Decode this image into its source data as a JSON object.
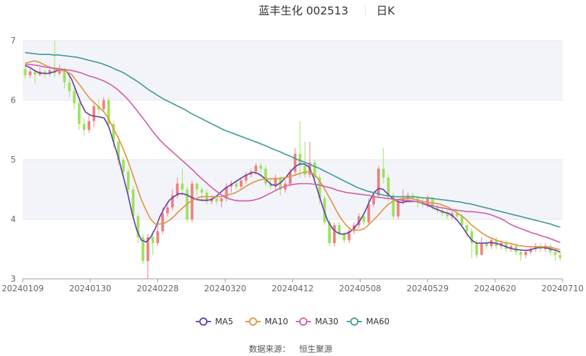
{
  "header": {
    "title": "蓝丰生化 002513",
    "period": "日K"
  },
  "source": {
    "label": "数据来源：",
    "provider": "恒生聚源"
  },
  "colors": {
    "up": "#f07f7f",
    "down": "#9de35a",
    "ma5": "#6b46a8",
    "ma10": "#e0984a",
    "ma30": "#d067a9",
    "ma60": "#4a9e9a",
    "band": "#f3f4fa",
    "grid": "#e6e6e6"
  },
  "chart_data": {
    "type": "candlestick",
    "x_ticks": [
      "20240109",
      "20240130",
      "20240228",
      "20240320",
      "20240412",
      "20240508",
      "20240529",
      "20240620",
      "20240710"
    ],
    "y_ticks": [
      "3",
      "4",
      "5",
      "6",
      "7"
    ],
    "ylim": [
      3,
      7
    ],
    "legend": [
      "MA5",
      "MA10",
      "MA30",
      "MA60"
    ],
    "legend_position": "bottom",
    "candles": [
      [
        6.52,
        6.42,
        6.57,
        6.36
      ],
      [
        6.42,
        6.48,
        6.53,
        6.37
      ],
      [
        6.48,
        6.43,
        6.52,
        6.28
      ],
      [
        6.43,
        6.48,
        6.55,
        6.4
      ],
      [
        6.48,
        6.44,
        6.52,
        6.37
      ],
      [
        6.44,
        6.5,
        6.58,
        6.4
      ],
      [
        6.5,
        6.45,
        7.0,
        6.38
      ],
      [
        6.45,
        6.52,
        6.6,
        6.42
      ],
      [
        6.52,
        6.3,
        6.55,
        6.2
      ],
      [
        6.3,
        6.15,
        6.4,
        6.05
      ],
      [
        6.15,
        5.95,
        6.2,
        5.85
      ],
      [
        5.95,
        5.6,
        6.0,
        5.5
      ],
      [
        5.6,
        5.5,
        5.7,
        5.4
      ],
      [
        5.5,
        5.65,
        5.75,
        5.45
      ],
      [
        5.65,
        5.9,
        5.98,
        5.55
      ],
      [
        5.9,
        5.85,
        6.0,
        5.75
      ],
      [
        5.85,
        6.0,
        6.05,
        5.8
      ],
      [
        6.0,
        5.6,
        6.05,
        5.55
      ],
      [
        5.6,
        5.3,
        5.65,
        5.2
      ],
      [
        5.3,
        5.0,
        5.4,
        4.9
      ],
      [
        5.0,
        4.8,
        5.05,
        4.7
      ],
      [
        4.8,
        4.5,
        4.85,
        4.4
      ],
      [
        4.5,
        4.05,
        4.55,
        4.0
      ],
      [
        4.05,
        3.7,
        4.1,
        3.6
      ],
      [
        3.7,
        3.3,
        3.75,
        3.25
      ],
      [
        3.3,
        3.7,
        3.75,
        3.0
      ],
      [
        3.7,
        3.6,
        3.8,
        3.4
      ],
      [
        3.6,
        3.8,
        3.95,
        3.55
      ],
      [
        3.8,
        4.1,
        4.2,
        3.75
      ],
      [
        4.1,
        4.2,
        4.3,
        4.05
      ],
      [
        4.2,
        4.4,
        4.5,
        4.15
      ],
      [
        4.4,
        4.6,
        4.7,
        4.35
      ],
      [
        4.6,
        4.5,
        4.85,
        4.4
      ],
      [
        4.5,
        4.0,
        4.55,
        3.95
      ],
      [
        4.0,
        4.6,
        4.65,
        3.95
      ],
      [
        4.6,
        4.5,
        4.62,
        4.4
      ],
      [
        4.5,
        4.45,
        4.55,
        4.3
      ],
      [
        4.45,
        4.3,
        4.5,
        4.25
      ],
      [
        4.3,
        4.35,
        4.4,
        4.25
      ],
      [
        4.35,
        4.3,
        4.4,
        4.25
      ],
      [
        4.3,
        4.35,
        4.4,
        4.2
      ],
      [
        4.35,
        4.55,
        4.6,
        4.3
      ],
      [
        4.55,
        4.6,
        4.65,
        4.45
      ],
      [
        4.6,
        4.55,
        4.65,
        4.5
      ],
      [
        4.55,
        4.65,
        4.7,
        4.5
      ],
      [
        4.65,
        4.75,
        4.8,
        4.6
      ],
      [
        4.75,
        4.8,
        4.85,
        4.7
      ],
      [
        4.8,
        4.9,
        4.95,
        4.75
      ],
      [
        4.9,
        4.85,
        4.95,
        4.75
      ],
      [
        4.85,
        4.6,
        4.9,
        4.55
      ],
      [
        4.6,
        4.55,
        4.7,
        4.5
      ],
      [
        4.55,
        4.7,
        4.75,
        4.5
      ],
      [
        4.7,
        4.5,
        4.72,
        4.4
      ],
      [
        4.5,
        4.6,
        4.65,
        4.45
      ],
      [
        4.6,
        4.8,
        4.85,
        4.55
      ],
      [
        4.8,
        5.1,
        5.2,
        4.75
      ],
      [
        5.1,
        4.9,
        5.65,
        4.7
      ],
      [
        4.9,
        4.75,
        5.3,
        4.7
      ],
      [
        4.75,
        4.95,
        5.3,
        4.7
      ],
      [
        4.95,
        4.7,
        5.0,
        4.6
      ],
      [
        4.7,
        4.35,
        4.75,
        4.25
      ],
      [
        4.35,
        3.95,
        4.4,
        3.9
      ],
      [
        3.95,
        3.6,
        4.0,
        3.55
      ],
      [
        3.6,
        3.9,
        3.95,
        3.55
      ],
      [
        3.9,
        3.75,
        3.95,
        3.7
      ],
      [
        3.75,
        3.65,
        3.8,
        3.6
      ],
      [
        3.65,
        3.8,
        3.85,
        3.6
      ],
      [
        3.8,
        3.9,
        3.95,
        3.75
      ],
      [
        3.9,
        4.05,
        4.1,
        3.85
      ],
      [
        4.05,
        3.95,
        4.1,
        3.9
      ],
      [
        3.95,
        4.25,
        4.35,
        3.9
      ],
      [
        4.25,
        4.4,
        4.45,
        4.2
      ],
      [
        4.4,
        4.85,
        4.9,
        4.35
      ],
      [
        4.85,
        4.7,
        5.2,
        4.6
      ],
      [
        4.7,
        4.4,
        4.75,
        4.3
      ],
      [
        4.4,
        4.05,
        4.45,
        4.0
      ],
      [
        4.05,
        4.3,
        4.35,
        4.0
      ],
      [
        4.3,
        4.35,
        4.5,
        4.25
      ],
      [
        4.35,
        4.4,
        4.45,
        4.3
      ],
      [
        4.4,
        4.35,
        4.45,
        4.3
      ],
      [
        4.35,
        4.3,
        4.4,
        4.2
      ],
      [
        4.3,
        4.25,
        4.35,
        4.2
      ],
      [
        4.25,
        4.35,
        4.4,
        4.2
      ],
      [
        4.35,
        4.2,
        4.38,
        4.15
      ],
      [
        4.2,
        4.15,
        4.25,
        4.1
      ],
      [
        4.15,
        4.1,
        4.2,
        4.05
      ],
      [
        4.1,
        4.05,
        4.15,
        4.0
      ],
      [
        4.05,
        4.1,
        4.15,
        4.0
      ],
      [
        4.1,
        4.05,
        4.15,
        4.0
      ],
      [
        4.05,
        3.9,
        4.1,
        3.85
      ],
      [
        3.9,
        3.8,
        3.95,
        3.7
      ],
      [
        3.8,
        3.6,
        3.85,
        3.35
      ],
      [
        3.6,
        3.4,
        3.65,
        3.35
      ],
      [
        3.4,
        3.6,
        3.7,
        3.4
      ],
      [
        3.6,
        3.55,
        3.65,
        3.5
      ],
      [
        3.55,
        3.65,
        3.7,
        3.5
      ],
      [
        3.65,
        3.55,
        3.7,
        3.5
      ],
      [
        3.55,
        3.6,
        3.65,
        3.5
      ],
      [
        3.6,
        3.5,
        3.65,
        3.45
      ],
      [
        3.5,
        3.55,
        3.6,
        3.45
      ],
      [
        3.55,
        3.45,
        3.6,
        3.4
      ],
      [
        3.45,
        3.4,
        3.5,
        3.3
      ],
      [
        3.4,
        3.45,
        3.5,
        3.35
      ],
      [
        3.45,
        3.5,
        3.55,
        3.4
      ],
      [
        3.5,
        3.55,
        3.6,
        3.45
      ],
      [
        3.55,
        3.5,
        3.6,
        3.45
      ],
      [
        3.5,
        3.55,
        3.6,
        3.45
      ],
      [
        3.55,
        3.45,
        3.58,
        3.4
      ],
      [
        3.45,
        3.4,
        3.5,
        3.3
      ],
      [
        3.4,
        3.35,
        3.45,
        3.3
      ]
    ],
    "series": [
      {
        "name": "MA5",
        "values": [
          6.58,
          6.55,
          6.5,
          6.46,
          6.45,
          6.45,
          6.47,
          6.5,
          6.52,
          6.48,
          6.35,
          6.15,
          5.95,
          5.8,
          5.75,
          5.73,
          5.72,
          5.7,
          5.55,
          5.3,
          5.05,
          4.75,
          4.45,
          4.1,
          3.82,
          3.65,
          3.62,
          3.7,
          3.85,
          4.05,
          4.2,
          4.32,
          4.38,
          4.43,
          4.43,
          4.4,
          4.36,
          4.33,
          4.32,
          4.32,
          4.33,
          4.38,
          4.45,
          4.52,
          4.57,
          4.62,
          4.67,
          4.72,
          4.76,
          4.79,
          4.77,
          4.72,
          4.65,
          4.58,
          4.57,
          4.62,
          4.7,
          4.8,
          4.88,
          4.93,
          4.93,
          4.88,
          4.7,
          4.45,
          4.2,
          3.98,
          3.85,
          3.78,
          3.75,
          3.76,
          3.8,
          3.88,
          3.98,
          4.12,
          4.3,
          4.45,
          4.52,
          4.5,
          4.42,
          4.35,
          4.3,
          4.28,
          4.3,
          4.3,
          4.3,
          4.28,
          4.25,
          4.22,
          4.18,
          4.15,
          4.12,
          4.1,
          4.05,
          3.97,
          3.87,
          3.75,
          3.65,
          3.6,
          3.6,
          3.6,
          3.61,
          3.6,
          3.58,
          3.55,
          3.52,
          3.5,
          3.49,
          3.48,
          3.48,
          3.5,
          3.52,
          3.53,
          3.52,
          3.5,
          3.48,
          3.45
        ]
      },
      {
        "name": "MA10",
        "values": [
          6.62,
          6.64,
          6.66,
          6.64,
          6.6,
          6.56,
          6.53,
          6.51,
          6.5,
          6.48,
          6.43,
          6.33,
          6.23,
          6.12,
          6.02,
          5.95,
          5.87,
          5.8,
          5.68,
          5.52,
          5.37,
          5.2,
          5.0,
          4.78,
          4.55,
          4.33,
          4.15,
          4.0,
          3.92,
          3.92,
          3.94,
          3.98,
          4.05,
          4.13,
          4.2,
          4.27,
          4.32,
          4.36,
          4.38,
          4.38,
          4.38,
          4.38,
          4.38,
          4.4,
          4.42,
          4.44,
          4.48,
          4.53,
          4.58,
          4.62,
          4.65,
          4.67,
          4.68,
          4.68,
          4.68,
          4.69,
          4.7,
          4.72,
          4.74,
          4.77,
          4.79,
          4.8,
          4.76,
          4.68,
          4.56,
          4.42,
          4.28,
          4.13,
          4.0,
          3.9,
          3.83,
          3.82,
          3.82,
          3.85,
          3.92,
          4.0,
          4.08,
          4.17,
          4.25,
          4.3,
          4.33,
          4.35,
          4.35,
          4.35,
          4.33,
          4.31,
          4.29,
          4.28,
          4.27,
          4.26,
          4.23,
          4.2,
          4.15,
          4.1,
          4.05,
          3.98,
          3.9,
          3.84,
          3.78,
          3.73,
          3.69,
          3.66,
          3.63,
          3.61,
          3.6,
          3.58,
          3.56,
          3.55,
          3.54,
          3.54,
          3.54,
          3.54,
          3.54,
          3.53,
          3.51,
          3.49
        ]
      },
      {
        "name": "MA30",
        "values": [
          6.6,
          6.6,
          6.59,
          6.58,
          6.56,
          6.55,
          6.54,
          6.53,
          6.52,
          6.51,
          6.5,
          6.48,
          6.46,
          6.43,
          6.4,
          6.38,
          6.35,
          6.32,
          6.28,
          6.23,
          6.17,
          6.1,
          6.02,
          5.93,
          5.83,
          5.73,
          5.63,
          5.52,
          5.42,
          5.33,
          5.25,
          5.18,
          5.11,
          5.04,
          4.97,
          4.9,
          4.83,
          4.75,
          4.68,
          4.61,
          4.54,
          4.48,
          4.42,
          4.37,
          4.34,
          4.32,
          4.31,
          4.31,
          4.31,
          4.32,
          4.34,
          4.37,
          4.41,
          4.45,
          4.49,
          4.53,
          4.56,
          4.58,
          4.59,
          4.6,
          4.6,
          4.6,
          4.59,
          4.58,
          4.56,
          4.54,
          4.52,
          4.49,
          4.47,
          4.45,
          4.44,
          4.43,
          4.42,
          4.41,
          4.4,
          4.38,
          4.37,
          4.36,
          4.35,
          4.34,
          4.33,
          4.32,
          4.32,
          4.31,
          4.3,
          4.28,
          4.26,
          4.24,
          4.22,
          4.2,
          4.19,
          4.17,
          4.16,
          4.15,
          4.14,
          4.13,
          4.13,
          4.12,
          4.11,
          4.1,
          4.08,
          4.05,
          4.02,
          3.98,
          3.93,
          3.89,
          3.86,
          3.83,
          3.8,
          3.77,
          3.75,
          3.72,
          3.7,
          3.67,
          3.64,
          3.61
        ]
      },
      {
        "name": "MA60",
        "values": [
          6.8,
          6.79,
          6.78,
          6.77,
          6.77,
          6.77,
          6.76,
          6.76,
          6.75,
          6.74,
          6.73,
          6.72,
          6.7,
          6.68,
          6.66,
          6.64,
          6.62,
          6.59,
          6.56,
          6.52,
          6.49,
          6.45,
          6.4,
          6.35,
          6.3,
          6.24,
          6.18,
          6.13,
          6.08,
          6.03,
          5.99,
          5.95,
          5.91,
          5.87,
          5.83,
          5.78,
          5.74,
          5.7,
          5.66,
          5.62,
          5.58,
          5.54,
          5.5,
          5.47,
          5.44,
          5.41,
          5.38,
          5.35,
          5.32,
          5.29,
          5.26,
          5.23,
          5.19,
          5.16,
          5.13,
          5.09,
          5.06,
          5.02,
          4.99,
          4.96,
          4.93,
          4.89,
          4.86,
          4.82,
          4.78,
          4.74,
          4.7,
          4.66,
          4.62,
          4.58,
          4.54,
          4.51,
          4.48,
          4.46,
          4.44,
          4.42,
          4.4,
          4.39,
          4.38,
          4.38,
          4.38,
          4.38,
          4.38,
          4.37,
          4.36,
          4.36,
          4.35,
          4.34,
          4.33,
          4.32,
          4.31,
          4.3,
          4.29,
          4.27,
          4.26,
          4.24,
          4.22,
          4.2,
          4.18,
          4.16,
          4.14,
          4.12,
          4.1,
          4.08,
          4.06,
          4.04,
          4.02,
          4.0,
          3.98,
          3.96,
          3.94,
          3.92,
          3.89,
          3.87
        ]
      }
    ]
  }
}
